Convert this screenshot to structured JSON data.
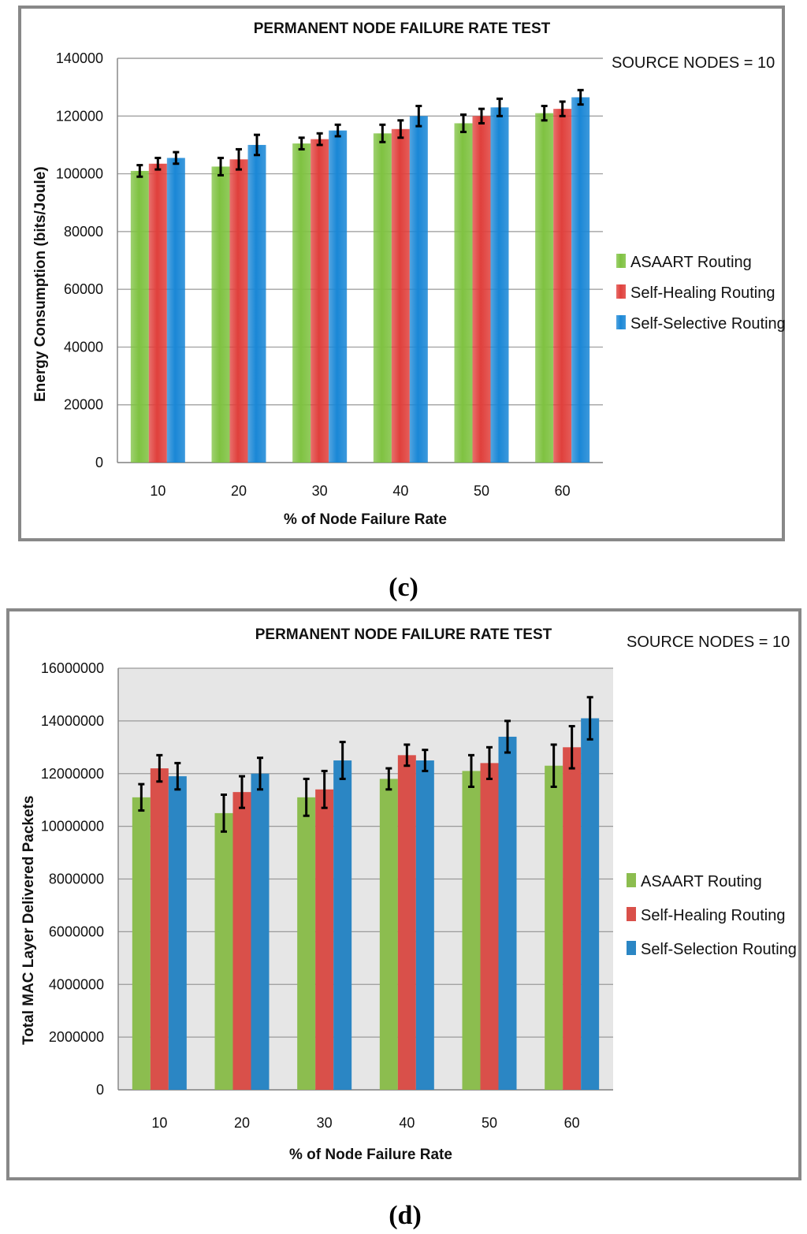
{
  "panel_labels": [
    "(c)",
    "(d)"
  ],
  "chart_data": [
    {
      "type": "bar",
      "title": "PERMANENT NODE FAILURE  RATE TEST",
      "annotation": "SOURCE NODES = 10",
      "xlabel": "% of Node Failure Rate",
      "ylabel": "Energy Consumption (bits/Joule)",
      "ylim": [
        0,
        140000
      ],
      "yticks": [
        "0",
        "20000",
        "40000",
        "60000",
        "80000",
        "100000",
        "120000",
        "140000"
      ],
      "categories": [
        "10",
        "20",
        "30",
        "40",
        "50",
        "60"
      ],
      "series": [
        {
          "name": "ASAART Routing",
          "color": "#7fc241",
          "values": [
            101000,
            102500,
            110500,
            114000,
            117500,
            121000
          ],
          "errors": [
            2000,
            3000,
            2000,
            3000,
            3000,
            2500
          ]
        },
        {
          "name": "Self-Healing Routing",
          "color": "#e0403c",
          "values": [
            103500,
            105000,
            112000,
            115500,
            120000,
            122500
          ],
          "errors": [
            2000,
            3500,
            2000,
            3000,
            2500,
            2500
          ]
        },
        {
          "name": "Self-Selective Routing",
          "color": "#1a87d6",
          "values": [
            105500,
            110000,
            115000,
            120000,
            123000,
            126500
          ],
          "errors": [
            2000,
            3500,
            2000,
            3500,
            3000,
            2500
          ]
        }
      ],
      "grid": true,
      "legend_position": "right"
    },
    {
      "type": "bar",
      "title": "PERMANENT NODE FAILURE RATE TEST",
      "annotation": "SOURCE NODES = 10",
      "xlabel": "% of Node Failure Rate",
      "ylabel": "Total MAC Layer Delivered Packets",
      "ylim": [
        0,
        16000000
      ],
      "yticks": [
        "0",
        "2000000",
        "4000000",
        "6000000",
        "8000000",
        "10000000",
        "12000000",
        "14000000",
        "16000000"
      ],
      "categories": [
        "10",
        "20",
        "30",
        "40",
        "50",
        "60"
      ],
      "series": [
        {
          "name": "ASAART Routing",
          "color": "#8cbd4f",
          "values": [
            11100000,
            10500000,
            11100000,
            11800000,
            12100000,
            12300000
          ],
          "errors": [
            500000,
            700000,
            700000,
            400000,
            600000,
            800000
          ]
        },
        {
          "name": "Self-Healing Routing",
          "color": "#d9504a",
          "values": [
            12200000,
            11300000,
            11400000,
            12700000,
            12400000,
            13000000
          ],
          "errors": [
            500000,
            600000,
            700000,
            400000,
            600000,
            800000
          ]
        },
        {
          "name": "Self-Selection Routing",
          "color": "#2b86c4",
          "values": [
            11900000,
            12000000,
            12500000,
            12500000,
            13400000,
            14100000
          ],
          "errors": [
            500000,
            600000,
            700000,
            400000,
            600000,
            800000
          ]
        }
      ],
      "grid": true,
      "legend_position": "right"
    }
  ]
}
